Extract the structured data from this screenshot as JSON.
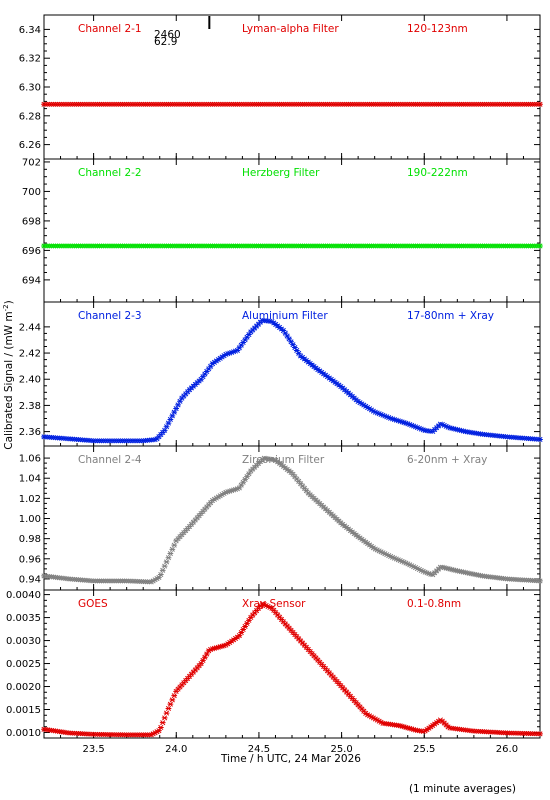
{
  "chart_data": [
    {
      "type": "scatter",
      "panel_id": "ch2-1",
      "labels": {
        "channel": "Channel 2-1",
        "filter": "Lyman-alpha Filter",
        "band": "120-123nm"
      },
      "color": "#e00000",
      "xlim": [
        23.2,
        26.2
      ],
      "ylim": [
        6.25,
        6.35
      ],
      "yticks": [
        "6.26",
        "6.28",
        "6.30",
        "6.32",
        "6.34"
      ],
      "annotation": {
        "line1": "2460",
        "line2": "62.9",
        "x": 24.2
      },
      "series": [
        {
          "x_start": 23.2,
          "x_end": 26.2,
          "points": [
            [
              23.2,
              6.288
            ],
            [
              26.2,
              6.288
            ]
          ]
        }
      ]
    },
    {
      "type": "scatter",
      "panel_id": "ch2-2",
      "labels": {
        "channel": "Channel 2-2",
        "filter": "Herzberg Filter",
        "band": "190-222nm"
      },
      "color": "#00e000",
      "xlim": [
        23.2,
        26.2
      ],
      "ylim": [
        692.5,
        702.2
      ],
      "yticks": [
        "694",
        "696",
        "698",
        "700",
        "702"
      ],
      "series": [
        {
          "x_start": 23.2,
          "x_end": 26.2,
          "points": [
            [
              23.2,
              696.3
            ],
            [
              26.2,
              696.3
            ]
          ]
        }
      ]
    },
    {
      "type": "scatter",
      "panel_id": "ch2-3",
      "labels": {
        "channel": "Channel 2-3",
        "filter": "Aluminium Filter",
        "band": "17-80nm + Xray"
      },
      "color": "#0020e0",
      "xlim": [
        23.2,
        26.2
      ],
      "ylim": [
        2.349,
        2.459
      ],
      "yticks": [
        "2.36",
        "2.38",
        "2.40",
        "2.42",
        "2.44"
      ],
      "series": [
        {
          "x_start": 23.2,
          "x_end": 26.2,
          "points": [
            [
              23.2,
              2.356
            ],
            [
              23.3,
              2.355
            ],
            [
              23.4,
              2.354
            ],
            [
              23.5,
              2.353
            ],
            [
              23.6,
              2.353
            ],
            [
              23.7,
              2.353
            ],
            [
              23.8,
              2.353
            ],
            [
              23.88,
              2.354
            ],
            [
              23.93,
              2.361
            ],
            [
              23.98,
              2.373
            ],
            [
              24.03,
              2.385
            ],
            [
              24.08,
              2.392
            ],
            [
              24.15,
              2.4
            ],
            [
              24.22,
              2.412
            ],
            [
              24.3,
              2.419
            ],
            [
              24.37,
              2.422
            ],
            [
              24.45,
              2.436
            ],
            [
              24.52,
              2.445
            ],
            [
              24.58,
              2.444
            ],
            [
              24.65,
              2.437
            ],
            [
              24.75,
              2.418
            ],
            [
              24.85,
              2.408
            ],
            [
              25.0,
              2.394
            ],
            [
              25.1,
              2.383
            ],
            [
              25.2,
              2.375
            ],
            [
              25.3,
              2.37
            ],
            [
              25.4,
              2.366
            ],
            [
              25.5,
              2.361
            ],
            [
              25.55,
              2.36
            ],
            [
              25.6,
              2.366
            ],
            [
              25.65,
              2.363
            ],
            [
              25.75,
              2.36
            ],
            [
              25.85,
              2.358
            ],
            [
              26.0,
              2.356
            ],
            [
              26.2,
              2.354
            ]
          ]
        }
      ]
    },
    {
      "type": "scatter",
      "panel_id": "ch2-4",
      "labels": {
        "channel": "Channel 2-4",
        "filter": "Zirconium Filter",
        "band": "6-20nm + Xray"
      },
      "color": "#808080",
      "xlim": [
        23.2,
        26.2
      ],
      "ylim": [
        0.929,
        1.072
      ],
      "yticks": [
        "0.94",
        "0.96",
        "0.98",
        "1.00",
        "1.02",
        "1.04",
        "1.06"
      ],
      "series": [
        {
          "x_start": 23.2,
          "x_end": 26.2,
          "points": [
            [
              23.2,
              0.943
            ],
            [
              23.35,
              0.94
            ],
            [
              23.5,
              0.938
            ],
            [
              23.7,
              0.938
            ],
            [
              23.85,
              0.937
            ],
            [
              23.9,
              0.942
            ],
            [
              23.95,
              0.96
            ],
            [
              24.0,
              0.978
            ],
            [
              24.08,
              0.992
            ],
            [
              24.15,
              1.005
            ],
            [
              24.22,
              1.018
            ],
            [
              24.3,
              1.026
            ],
            [
              24.38,
              1.03
            ],
            [
              24.45,
              1.047
            ],
            [
              24.53,
              1.06
            ],
            [
              24.6,
              1.058
            ],
            [
              24.7,
              1.045
            ],
            [
              24.8,
              1.025
            ],
            [
              24.9,
              1.01
            ],
            [
              25.0,
              0.995
            ],
            [
              25.1,
              0.982
            ],
            [
              25.2,
              0.97
            ],
            [
              25.3,
              0.962
            ],
            [
              25.4,
              0.955
            ],
            [
              25.5,
              0.947
            ],
            [
              25.55,
              0.944
            ],
            [
              25.6,
              0.952
            ],
            [
              25.7,
              0.948
            ],
            [
              25.85,
              0.943
            ],
            [
              26.0,
              0.94
            ],
            [
              26.2,
              0.938
            ]
          ]
        }
      ]
    },
    {
      "type": "scatter",
      "panel_id": "goes",
      "labels": {
        "channel": "GOES",
        "filter": "Xray Sensor",
        "band": "0.1-0.8nm"
      },
      "color": "#e00000",
      "xlim": [
        23.2,
        26.2
      ],
      "ylim": [
        0.00088,
        0.0041
      ],
      "yticks": [
        "0.0010",
        "0.0015",
        "0.0020",
        "0.0025",
        "0.0030",
        "0.0035",
        "0.0040"
      ],
      "series": [
        {
          "x_start": 23.2,
          "x_end": 26.2,
          "points": [
            [
              23.2,
              0.00107
            ],
            [
              23.35,
              0.00099
            ],
            [
              23.5,
              0.00096
            ],
            [
              23.7,
              0.00095
            ],
            [
              23.85,
              0.00095
            ],
            [
              23.9,
              0.00105
            ],
            [
              23.95,
              0.0015
            ],
            [
              24.0,
              0.0019
            ],
            [
              24.05,
              0.0021
            ],
            [
              24.1,
              0.0023
            ],
            [
              24.15,
              0.0025
            ],
            [
              24.2,
              0.0028
            ],
            [
              24.3,
              0.0029
            ],
            [
              24.38,
              0.0031
            ],
            [
              24.45,
              0.0035
            ],
            [
              24.52,
              0.0038
            ],
            [
              24.58,
              0.0037
            ],
            [
              24.65,
              0.0034
            ],
            [
              24.75,
              0.003
            ],
            [
              24.85,
              0.0026
            ],
            [
              24.95,
              0.0022
            ],
            [
              25.05,
              0.0018
            ],
            [
              25.15,
              0.0014
            ],
            [
              25.25,
              0.0012
            ],
            [
              25.35,
              0.00115
            ],
            [
              25.45,
              0.00105
            ],
            [
              25.5,
              0.00102
            ],
            [
              25.55,
              0.00115
            ],
            [
              25.6,
              0.00128
            ],
            [
              25.65,
              0.0011
            ],
            [
              25.8,
              0.00103
            ],
            [
              26.0,
              0.00099
            ],
            [
              26.2,
              0.00097
            ]
          ]
        }
      ]
    }
  ],
  "x_axis": {
    "ticks": [
      "23.5",
      "24.0",
      "24.5",
      "25.0",
      "25.5",
      "26.0"
    ],
    "label": "Time / h UTC, 24 Mar 2026"
  },
  "y_axis_label": "Calibrated Signal / (mW m",
  "y_axis_label_sup": "-2",
  "y_axis_label_close": ")",
  "footer_note": "(1 minute averages)"
}
